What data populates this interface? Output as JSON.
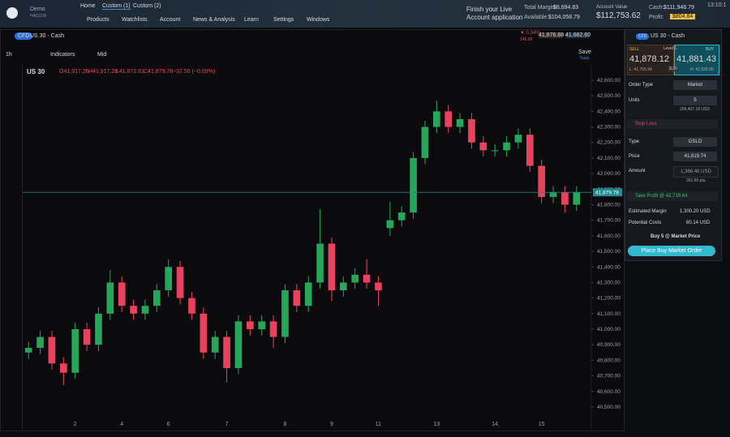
{
  "top_bar": {
    "user": "Demo",
    "account_id": "H463236",
    "tabs": [
      "Home",
      "Custom (1)",
      "Custom (2)"
    ],
    "menu": [
      "Products",
      "Watchlists",
      "Account",
      "News & Analysis",
      "Learn",
      "Settings",
      "Windows"
    ],
    "finish_line1": "Finish your Live",
    "finish_line2": "Account application",
    "total_margin_label": "Total Margin:",
    "total_margin": "$8,694.83",
    "available_label": "Available:",
    "available": "$104,058.79",
    "account_value_label": "Account Value",
    "account_value": "$112,753.62",
    "cash_label": "Cash:",
    "cash": "$111,948.79",
    "profit_label": "Profit:",
    "profit": "$804.84",
    "time": "13:10:1"
  },
  "chart_header": {
    "badge": "CFD",
    "instrument": "US 30 - Cash",
    "change": "▼ 0.34%",
    "change_points": "146.98",
    "bid": "41,876.88",
    "ask": "41,882.60"
  },
  "chart_toolbar": {
    "interval": "1h",
    "indicators": "Indicators",
    "price_type": "Mid",
    "save": "Save",
    "save_sub": "Save"
  },
  "chart_legend": {
    "symbol": "US 30",
    "open": "O41,917.26",
    "high": "H41,917.26",
    "low": "L41,872.61",
    "close": "C41,879.78",
    "change": "−37.50 (−0.09%)"
  },
  "chart_data": {
    "type": "candlestick",
    "up_color": "#26a65b",
    "down_color": "#e8425f",
    "grid": false,
    "categories": [
      null,
      null,
      null,
      null,
      "2",
      null,
      null,
      null,
      "4",
      null,
      null,
      null,
      "6",
      null,
      null,
      null,
      null,
      "7",
      null,
      null,
      null,
      null,
      "8",
      null,
      null,
      null,
      "9",
      null,
      null,
      null,
      "11",
      null,
      null,
      null,
      null,
      "13",
      null,
      null,
      null,
      null,
      "14",
      null,
      null,
      null,
      "15",
      null,
      null,
      null
    ],
    "open": [
      40850,
      40880,
      40950,
      40780,
      40720,
      41000,
      40900,
      41100,
      41300,
      41150,
      41100,
      41150,
      41250,
      41400,
      41200,
      41100,
      40850,
      40950,
      40750,
      41050,
      41000,
      41050,
      40950,
      41250,
      41150,
      41300,
      41550,
      41250,
      41300,
      41350,
      41300,
      41650,
      41700,
      41750,
      42100,
      42300,
      42400,
      42300,
      42350,
      42200,
      42150,
      42150,
      42200,
      42250,
      42050,
      41850,
      41880,
      41800
    ],
    "high": [
      40920,
      40990,
      40990,
      40820,
      41040,
      41040,
      41140,
      41380,
      41340,
      41190,
      41190,
      41290,
      41450,
      41440,
      41240,
      41140,
      40990,
      40990,
      41090,
      41090,
      41090,
      41090,
      41290,
      41290,
      41340,
      41770,
      41590,
      41340,
      41390,
      41450,
      41340,
      41820,
      41790,
      42140,
      42340,
      42470,
      42440,
      42390,
      42390,
      42240,
      42190,
      42240,
      42290,
      42290,
      42090,
      41920,
      41920,
      41920
    ],
    "low": [
      40810,
      40840,
      40740,
      40640,
      40680,
      40860,
      40860,
      41060,
      41110,
      41060,
      41060,
      41110,
      41210,
      41160,
      41060,
      40810,
      40810,
      40660,
      40710,
      40960,
      40960,
      40880,
      40910,
      41110,
      41110,
      41260,
      41180,
      41210,
      41260,
      41260,
      41150,
      41600,
      41660,
      41710,
      42060,
      42260,
      42260,
      42260,
      42160,
      42110,
      42110,
      42110,
      42160,
      42010,
      41810,
      41810,
      41750,
      41760
    ],
    "close": [
      40880,
      40950,
      40780,
      40720,
      41000,
      40900,
      41100,
      41300,
      41150,
      41100,
      41150,
      41250,
      41400,
      41200,
      41100,
      40850,
      40950,
      40750,
      41050,
      41000,
      41050,
      40950,
      41250,
      41150,
      41300,
      41550,
      41250,
      41300,
      41350,
      41300,
      41250,
      41700,
      41750,
      42100,
      42300,
      42400,
      42300,
      42350,
      42200,
      42150,
      42150,
      42200,
      42250,
      42050,
      41850,
      41880,
      41800,
      41880
    ],
    "ylim": [
      40432,
      42699
    ],
    "yticks": [
      {
        "value": 40500,
        "label": "40,500.00"
      },
      {
        "value": 40600,
        "label": "40,600.00"
      },
      {
        "value": 40700,
        "label": "40,700.00"
      },
      {
        "value": 40800,
        "label": "40,800.00"
      },
      {
        "value": 40900,
        "label": "40,900.00"
      },
      {
        "value": 41000,
        "label": "41,000.00"
      },
      {
        "value": 41100,
        "label": "41,100.00"
      },
      {
        "value": 41200,
        "label": "41,200.00"
      },
      {
        "value": 41300,
        "label": "41,300.00"
      },
      {
        "value": 41400,
        "label": "41,400.00"
      },
      {
        "value": 41500,
        "label": "41,500.00"
      },
      {
        "value": 41600,
        "label": "41,600.00"
      },
      {
        "value": 41700,
        "label": "41,700.00"
      },
      {
        "value": 41800,
        "label": "41,800.00"
      },
      {
        "value": 41900,
        "label": "41,900.00"
      },
      {
        "value": 42000,
        "label": "42,000.00"
      },
      {
        "value": 42100,
        "label": "42,100.00"
      },
      {
        "value": 42200,
        "label": "42,200.00"
      },
      {
        "value": 42300,
        "label": "42,300.00"
      },
      {
        "value": 42400,
        "label": "42,400.00"
      },
      {
        "value": 42500,
        "label": "42,500.00"
      },
      {
        "value": 42600,
        "label": "42,600.00"
      }
    ],
    "price_line": {
      "value": 41879.78,
      "label": "41,879.78"
    }
  },
  "order_panel": {
    "badge": "CFD",
    "instrument": "US 30 - Cash",
    "sell": "SELL",
    "buy": "BUY",
    "level": "Level 1",
    "sell_price": "41,878.12",
    "buy_price": "41,881.43",
    "low": "L: 41,755.94",
    "spread": "3.30",
    "high": "H: 42,029.00",
    "order_type_label": "Order Type",
    "order_type": "Market",
    "units_label": "Units",
    "units": "5",
    "notional": "209,407.18 USD",
    "stop_loss": "Stop Loss",
    "type_label": "Type",
    "type": "GSLO",
    "price_label": "Price",
    "price": "41,619.74",
    "amount_label": "Amount",
    "amount": "1,366.46 USD",
    "points": "261.69 pts.",
    "take_profit": "Take Profit @ 42,719.64",
    "margin_label": "Estimated Margin",
    "margin": "1,300.20 USD",
    "costs_label": "Potential Costs",
    "costs": "60.14 USD",
    "summary": "Buy 5 @ Market Price",
    "place": "Place Buy Market Order"
  }
}
